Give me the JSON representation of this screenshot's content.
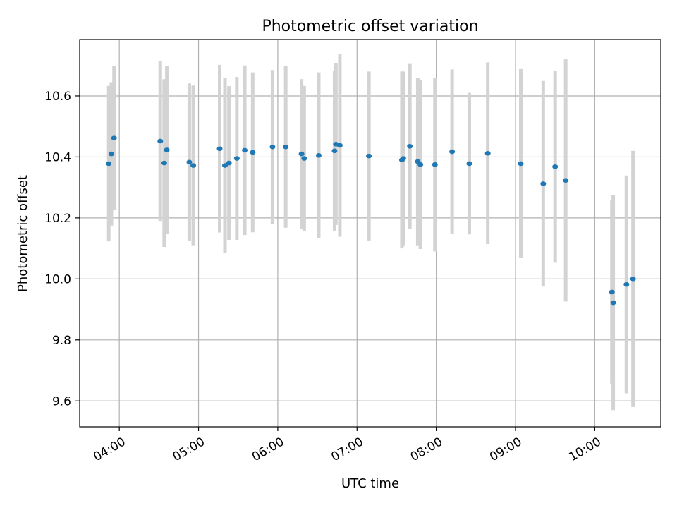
{
  "chart_data": {
    "type": "scatter",
    "title": "Photometric offset variation",
    "xlabel": "UTC time",
    "ylabel": "Photometric offset",
    "grid": true,
    "xlim": [
      "03:30",
      "10:50"
    ],
    "ylim": [
      9.515,
      10.785
    ],
    "x_ticks": [
      "04:00",
      "05:00",
      "06:00",
      "07:00",
      "08:00",
      "09:00",
      "10:00"
    ],
    "y_ticks": [
      "9.6",
      "9.8",
      "10.0",
      "10.2",
      "10.4",
      "10.6"
    ],
    "colors": {
      "points": "#1f77b4",
      "error_bars": "#d3d3d3",
      "grid": "#b0b0b0"
    },
    "series": [
      {
        "points": [
          {
            "x": "03:52",
            "y": 10.378,
            "err": 0.255
          },
          {
            "x": "03:54",
            "y": 10.41,
            "err": 0.235
          },
          {
            "x": "03:56",
            "y": 10.462,
            "err": 0.235
          },
          {
            "x": "04:31",
            "y": 10.452,
            "err": 0.262
          },
          {
            "x": "04:34",
            "y": 10.38,
            "err": 0.275
          },
          {
            "x": "04:36",
            "y": 10.423,
            "err": 0.275
          },
          {
            "x": "04:53",
            "y": 10.383,
            "err": 0.258
          },
          {
            "x": "04:56",
            "y": 10.372,
            "err": 0.262
          },
          {
            "x": "05:16",
            "y": 10.427,
            "err": 0.275
          },
          {
            "x": "05:20",
            "y": 10.372,
            "err": 0.287
          },
          {
            "x": "05:23",
            "y": 10.38,
            "err": 0.252
          },
          {
            "x": "05:29",
            "y": 10.395,
            "err": 0.267
          },
          {
            "x": "05:35",
            "y": 10.422,
            "err": 0.278
          },
          {
            "x": "05:41",
            "y": 10.415,
            "err": 0.262
          },
          {
            "x": "05:56",
            "y": 10.433,
            "err": 0.252
          },
          {
            "x": "06:06",
            "y": 10.433,
            "err": 0.265
          },
          {
            "x": "06:18",
            "y": 10.41,
            "err": 0.245
          },
          {
            "x": "06:20",
            "y": 10.395,
            "err": 0.238
          },
          {
            "x": "06:31",
            "y": 10.405,
            "err": 0.272
          },
          {
            "x": "06:43",
            "y": 10.42,
            "err": 0.262
          },
          {
            "x": "06:44",
            "y": 10.442,
            "err": 0.265
          },
          {
            "x": "06:47",
            "y": 10.438,
            "err": 0.3
          },
          {
            "x": "07:09",
            "y": 10.403,
            "err": 0.277
          },
          {
            "x": "07:34",
            "y": 10.39,
            "err": 0.29
          },
          {
            "x": "07:35",
            "y": 10.395,
            "err": 0.285
          },
          {
            "x": "07:40",
            "y": 10.435,
            "err": 0.27
          },
          {
            "x": "07:46",
            "y": 10.385,
            "err": 0.275
          },
          {
            "x": "07:48",
            "y": 10.375,
            "err": 0.277
          },
          {
            "x": "07:59",
            "y": 10.375,
            "err": 0.285
          },
          {
            "x": "08:12",
            "y": 10.417,
            "err": 0.27
          },
          {
            "x": "08:25",
            "y": 10.378,
            "err": 0.232
          },
          {
            "x": "08:39",
            "y": 10.412,
            "err": 0.298
          },
          {
            "x": "09:04",
            "y": 10.378,
            "err": 0.31
          },
          {
            "x": "09:21",
            "y": 10.312,
            "err": 0.337
          },
          {
            "x": "09:30",
            "y": 10.368,
            "err": 0.315
          },
          {
            "x": "09:38",
            "y": 10.323,
            "err": 0.397
          },
          {
            "x": "10:13",
            "y": 9.957,
            "err": 0.3
          },
          {
            "x": "10:14",
            "y": 9.922,
            "err": 0.352
          },
          {
            "x": "10:24",
            "y": 9.982,
            "err": 0.357
          },
          {
            "x": "10:29",
            "y": 10.0,
            "err": 0.42
          }
        ]
      }
    ]
  }
}
